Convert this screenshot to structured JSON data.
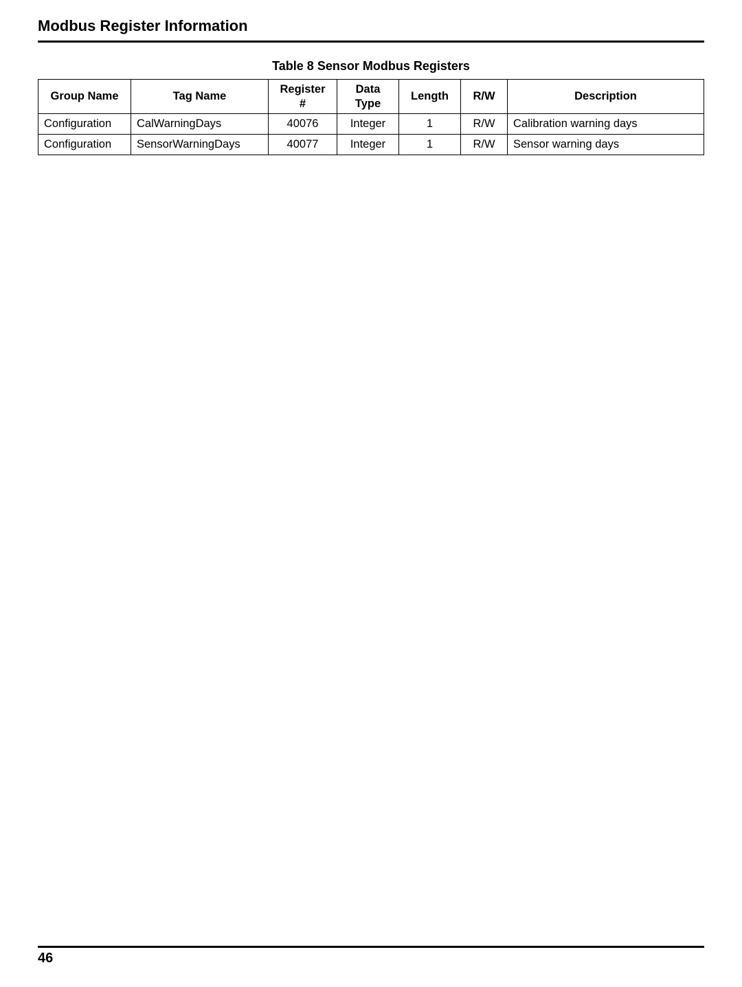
{
  "header": {
    "title": "Modbus Register Information"
  },
  "table": {
    "caption": "Table 8 Sensor Modbus Registers",
    "columns": {
      "group": {
        "label": "Group Name"
      },
      "tag": {
        "label": "Tag Name"
      },
      "reg": {
        "label_l1": "Register",
        "label_l2": "#"
      },
      "type": {
        "label_l1": "Data",
        "label_l2": "Type"
      },
      "len": {
        "label": "Length"
      },
      "rw": {
        "label": "R/W"
      },
      "desc": {
        "label": "Description"
      }
    },
    "rows": [
      {
        "group": "Configuration",
        "tag": "CalWarningDays",
        "reg": "40076",
        "type": "Integer",
        "len": "1",
        "rw": "R/W",
        "desc": "Calibration warning days"
      },
      {
        "group": "Configuration",
        "tag": "SensorWarningDays",
        "reg": "40077",
        "type": "Integer",
        "len": "1",
        "rw": "R/W",
        "desc": "Sensor warning days"
      }
    ]
  },
  "footer": {
    "page_number": "46"
  }
}
